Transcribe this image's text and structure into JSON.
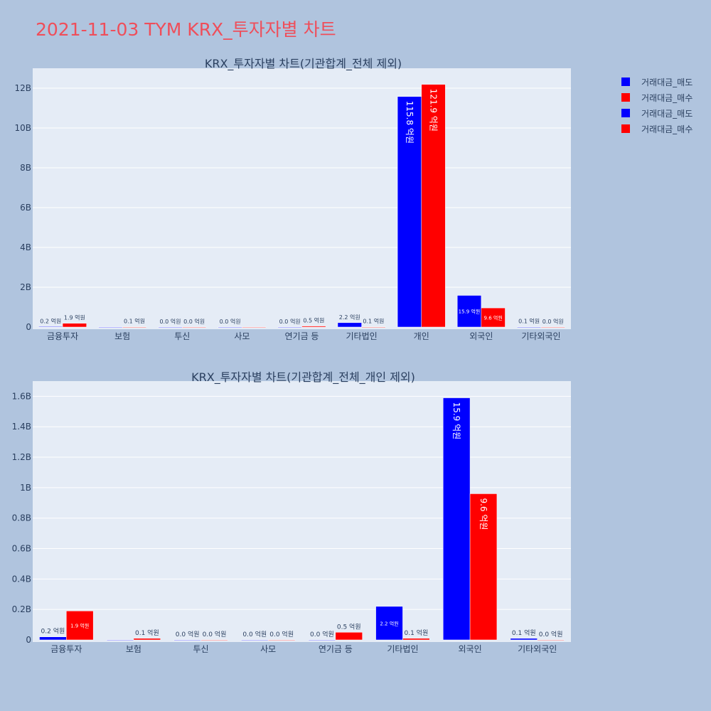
{
  "page": {
    "title": "2021-11-03 TYM KRX_투자자별 차트"
  },
  "legend": [
    {
      "label": "거래대금_매도",
      "color": "#0000ff"
    },
    {
      "label": "거래대금_매수",
      "color": "#ff0000"
    },
    {
      "label": "거래대금_매도",
      "color": "#0000ff"
    },
    {
      "label": "거래대금_매수",
      "color": "#ff0000"
    }
  ],
  "chart_data": [
    {
      "type": "bar",
      "title": "KRX_투자자별 차트(기관합계_전체 제외)",
      "categories": [
        "금융투자",
        "보험",
        "투신",
        "사모",
        "연기금 등",
        "기타법인",
        "개인",
        "외국인",
        "기타외국인"
      ],
      "ylim": [
        0,
        13000000000
      ],
      "yticks": [
        0,
        2000000000,
        4000000000,
        6000000000,
        8000000000,
        10000000000,
        12000000000
      ],
      "ytick_labels": [
        "0",
        "2B",
        "4B",
        "6B",
        "8B",
        "10B",
        "12B"
      ],
      "grid": true,
      "series": [
        {
          "name": "거래대금_매도",
          "color": "#0000ff",
          "values": [
            20000000,
            0,
            0,
            0,
            0,
            220000000,
            11580000000,
            1590000000,
            10000000
          ],
          "labels": [
            "0.2 억원",
            "",
            "0.0 억원",
            "0.0 억원",
            "0.0 억원",
            "2.2 억원",
            "115.8 억원",
            "15.9 억원",
            "0.1 억원"
          ]
        },
        {
          "name": "거래대금_매수",
          "color": "#ff0000",
          "values": [
            190000000,
            10000000,
            0,
            0,
            50000000,
            10000000,
            12190000000,
            960000000,
            0
          ],
          "labels": [
            "1.9 억원",
            "0.1 억원",
            "0.0 억원",
            "",
            "0.5 억원",
            "0.1 억원",
            "121.9 억원",
            "9.6 억원",
            "0.0 억원"
          ]
        }
      ]
    },
    {
      "type": "bar",
      "title": "KRX_투자자별 차트(기관합계_전체_개인 제외)",
      "categories": [
        "금융투자",
        "보험",
        "투신",
        "사모",
        "연기금 등",
        "기타법인",
        "외국인",
        "기타외국인"
      ],
      "ylim": [
        0,
        1700000000
      ],
      "yticks": [
        0,
        200000000,
        400000000,
        600000000,
        800000000,
        1000000000,
        1200000000,
        1400000000,
        1600000000
      ],
      "ytick_labels": [
        "0",
        "0.2B",
        "0.4B",
        "0.6B",
        "0.8B",
        "1B",
        "1.2B",
        "1.4B",
        "1.6B"
      ],
      "grid": true,
      "series": [
        {
          "name": "거래대금_매도",
          "color": "#0000ff",
          "values": [
            20000000,
            0,
            0,
            0,
            0,
            220000000,
            1590000000,
            10000000
          ],
          "labels": [
            "0.2 억원",
            "",
            "0.0 억원",
            "0.0 억원",
            "0.0 억원",
            "2.2 억원",
            "15.9 억원",
            "0.1 억원"
          ]
        },
        {
          "name": "거래대금_매수",
          "color": "#ff0000",
          "values": [
            190000000,
            10000000,
            0,
            0,
            50000000,
            10000000,
            960000000,
            0
          ],
          "labels": [
            "1.9 억원",
            "0.1 억원",
            "0.0 억원",
            "0.0 억원",
            "0.5 억원",
            "0.1 억원",
            "9.6 억원",
            "0.0 억원"
          ]
        }
      ]
    }
  ]
}
